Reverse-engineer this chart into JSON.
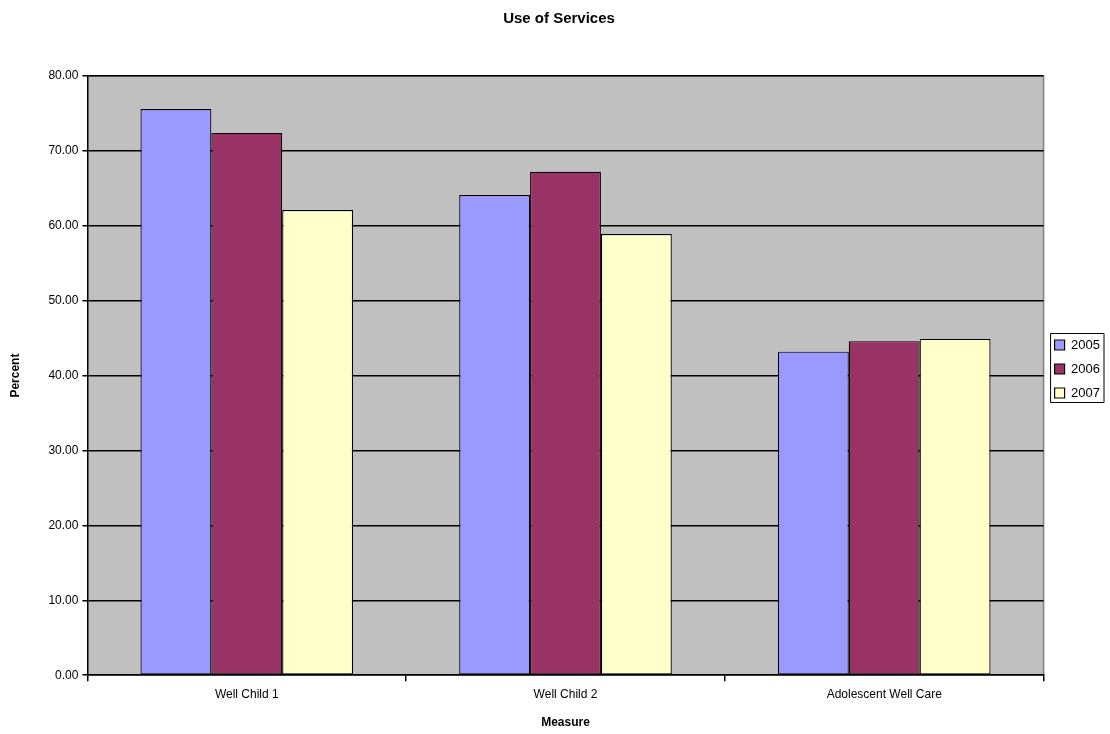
{
  "chart_data": {
    "type": "bar",
    "title": "Use of Services",
    "xlabel": "Measure",
    "ylabel": "Percent",
    "categories": [
      "Well Child 1",
      "Well Child 2",
      "Adolescent Well Care"
    ],
    "series": [
      {
        "name": "2005",
        "color": "#9999ff",
        "values": [
          75.6,
          64.1,
          43.2
        ]
      },
      {
        "name": "2006",
        "color": "#993366",
        "values": [
          72.4,
          67.2,
          44.6
        ]
      },
      {
        "name": "2007",
        "color": "#ffffcc",
        "values": [
          62.1,
          58.9,
          44.9
        ]
      }
    ],
    "ylim": [
      0,
      80
    ],
    "yticks": [
      {
        "value": 0,
        "label": "0.00"
      },
      {
        "value": 10,
        "label": "10.00"
      },
      {
        "value": 20,
        "label": "20.00"
      },
      {
        "value": 30,
        "label": "30.00"
      },
      {
        "value": 40,
        "label": "40.00"
      },
      {
        "value": 50,
        "label": "50.00"
      },
      {
        "value": 60,
        "label": "60.00"
      },
      {
        "value": 70,
        "label": "70.00"
      },
      {
        "value": 80,
        "label": "80.00"
      }
    ],
    "grid": "y",
    "legend": "right"
  }
}
